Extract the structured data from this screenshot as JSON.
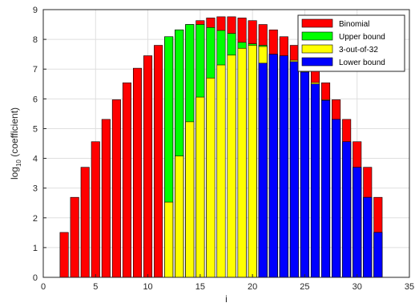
{
  "chart_data": {
    "type": "bar",
    "subtype": "overlapping",
    "x": [
      2,
      3,
      4,
      5,
      6,
      7,
      8,
      9,
      10,
      11,
      12,
      13,
      14,
      15,
      16,
      17,
      18,
      19,
      20,
      21,
      22,
      23,
      24,
      25,
      26,
      27,
      28,
      29,
      30,
      31,
      32
    ],
    "series": [
      {
        "name": "Binomial",
        "color": "#ff0000",
        "values": [
          1.51,
          2.69,
          3.7,
          4.56,
          5.31,
          5.97,
          6.54,
          7.03,
          7.45,
          7.8,
          8.09,
          8.32,
          8.5,
          8.63,
          8.72,
          8.76,
          8.76,
          8.72,
          8.63,
          8.5,
          8.32,
          8.09,
          7.8,
          7.45,
          7.03,
          6.54,
          5.97,
          5.31,
          4.56,
          3.7,
          2.69
        ]
      },
      {
        "name": "Upper bound",
        "color": "#00ff00",
        "values": [
          null,
          null,
          null,
          null,
          null,
          null,
          null,
          null,
          null,
          null,
          8.09,
          8.32,
          8.5,
          8.5,
          8.4,
          8.3,
          8.2,
          7.9,
          7.85,
          7.8,
          null,
          null,
          null,
          null,
          null,
          null,
          null,
          null,
          null,
          null,
          null
        ]
      },
      {
        "name": "3-out-of-32",
        "color": "#ffff00",
        "values": [
          null,
          null,
          null,
          null,
          null,
          null,
          null,
          null,
          null,
          null,
          2.53,
          4.08,
          5.23,
          6.06,
          6.7,
          7.14,
          7.47,
          7.7,
          7.8,
          7.76,
          7.5,
          7.4,
          7.3,
          7.0,
          6.55,
          5.97,
          5.31,
          4.56,
          3.7,
          2.69,
          1.51
        ]
      },
      {
        "name": "Lower bound",
        "color": "#0000ff",
        "values": [
          null,
          null,
          null,
          null,
          null,
          null,
          null,
          null,
          null,
          null,
          null,
          null,
          null,
          null,
          null,
          null,
          null,
          null,
          null,
          7.2,
          7.5,
          7.45,
          7.25,
          6.9,
          6.5,
          5.95,
          5.31,
          4.56,
          3.7,
          2.69,
          1.51
        ]
      }
    ],
    "xlabel": "i",
    "ylabel": "log",
    "ylabel_sub": "10",
    "ylabel_tail": " (coefficient)",
    "xlim": [
      0,
      35
    ],
    "ylim": [
      0,
      9
    ],
    "xticks": [
      0,
      5,
      10,
      15,
      20,
      25,
      30,
      35
    ],
    "yticks": [
      0,
      1,
      2,
      3,
      4,
      5,
      6,
      7,
      8,
      9
    ],
    "grid": true,
    "legend_position": "top-right"
  }
}
